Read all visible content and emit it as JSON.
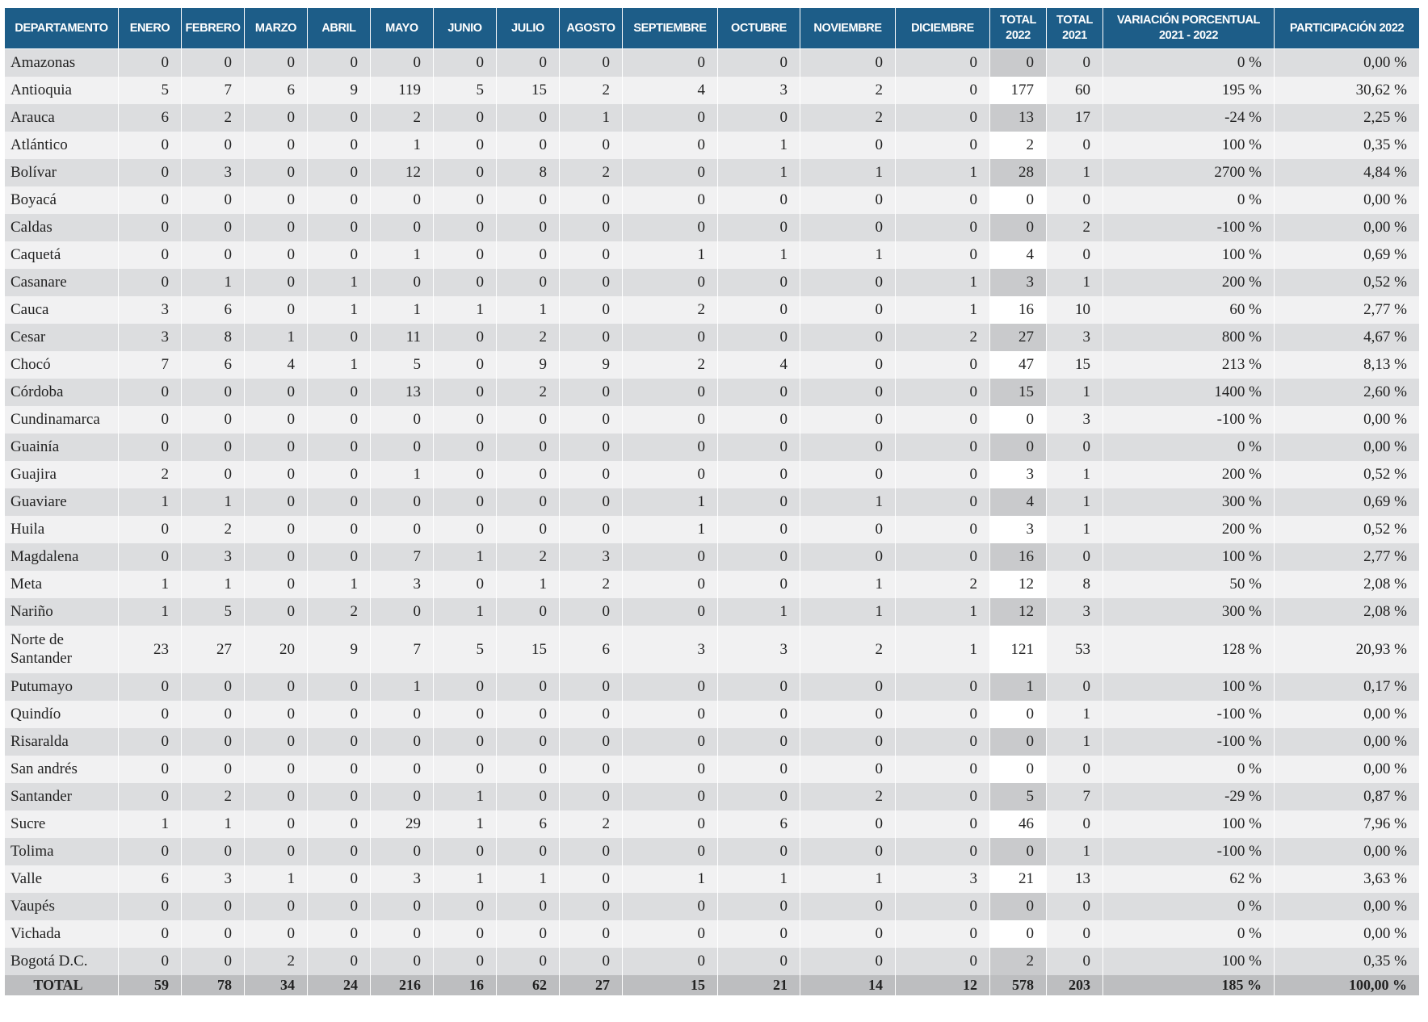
{
  "table": {
    "header": [
      "DEPARTAMENTO",
      "ENERO",
      "FEBRERO",
      "MARZO",
      "ABRIL",
      "MAYO",
      "JUNIO",
      "JULIO",
      "AGOSTO",
      "SEPTIEMBRE",
      "OCTUBRE",
      "NOVIEMBRE",
      "DICIEMBRE",
      "TOTAL 2022",
      "TOTAL 2021",
      "VARIACIÓN PORCENTUAL 2021 - 2022",
      "PARTICIPACIÓN 2022"
    ],
    "rows": [
      [
        "Amazonas",
        "0",
        "0",
        "0",
        "0",
        "0",
        "0",
        "0",
        "0",
        "0",
        "0",
        "0",
        "0",
        "0",
        "0",
        "0 %",
        "0,00 %"
      ],
      [
        "Antioquia",
        "5",
        "7",
        "6",
        "9",
        "119",
        "5",
        "15",
        "2",
        "4",
        "3",
        "2",
        "0",
        "177",
        "60",
        "195 %",
        "30,62 %"
      ],
      [
        "Arauca",
        "6",
        "2",
        "0",
        "0",
        "2",
        "0",
        "0",
        "1",
        "0",
        "0",
        "2",
        "0",
        "13",
        "17",
        "-24 %",
        "2,25 %"
      ],
      [
        "Atlántico",
        "0",
        "0",
        "0",
        "0",
        "1",
        "0",
        "0",
        "0",
        "0",
        "1",
        "0",
        "0",
        "2",
        "0",
        "100 %",
        "0,35 %"
      ],
      [
        "Bolívar",
        "0",
        "3",
        "0",
        "0",
        "12",
        "0",
        "8",
        "2",
        "0",
        "1",
        "1",
        "1",
        "28",
        "1",
        "2700 %",
        "4,84 %"
      ],
      [
        "Boyacá",
        "0",
        "0",
        "0",
        "0",
        "0",
        "0",
        "0",
        "0",
        "0",
        "0",
        "0",
        "0",
        "0",
        "0",
        "0 %",
        "0,00 %"
      ],
      [
        "Caldas",
        "0",
        "0",
        "0",
        "0",
        "0",
        "0",
        "0",
        "0",
        "0",
        "0",
        "0",
        "0",
        "0",
        "2",
        "-100 %",
        "0,00 %"
      ],
      [
        "Caquetá",
        "0",
        "0",
        "0",
        "0",
        "1",
        "0",
        "0",
        "0",
        "1",
        "1",
        "1",
        "0",
        "4",
        "0",
        "100 %",
        "0,69 %"
      ],
      [
        "Casanare",
        "0",
        "1",
        "0",
        "1",
        "0",
        "0",
        "0",
        "0",
        "0",
        "0",
        "0",
        "1",
        "3",
        "1",
        "200 %",
        "0,52 %"
      ],
      [
        "Cauca",
        "3",
        "6",
        "0",
        "1",
        "1",
        "1",
        "1",
        "0",
        "2",
        "0",
        "0",
        "1",
        "16",
        "10",
        "60 %",
        "2,77 %"
      ],
      [
        "Cesar",
        "3",
        "8",
        "1",
        "0",
        "11",
        "0",
        "2",
        "0",
        "0",
        "0",
        "0",
        "2",
        "27",
        "3",
        "800 %",
        "4,67 %"
      ],
      [
        "Chocó",
        "7",
        "6",
        "4",
        "1",
        "5",
        "0",
        "9",
        "9",
        "2",
        "4",
        "0",
        "0",
        "47",
        "15",
        "213 %",
        "8,13 %"
      ],
      [
        "Córdoba",
        "0",
        "0",
        "0",
        "0",
        "13",
        "0",
        "2",
        "0",
        "0",
        "0",
        "0",
        "0",
        "15",
        "1",
        "1400 %",
        "2,60 %"
      ],
      [
        "Cundinamarca",
        "0",
        "0",
        "0",
        "0",
        "0",
        "0",
        "0",
        "0",
        "0",
        "0",
        "0",
        "0",
        "0",
        "3",
        "-100 %",
        "0,00 %"
      ],
      [
        "Guainía",
        "0",
        "0",
        "0",
        "0",
        "0",
        "0",
        "0",
        "0",
        "0",
        "0",
        "0",
        "0",
        "0",
        "0",
        "0 %",
        "0,00 %"
      ],
      [
        "Guajira",
        "2",
        "0",
        "0",
        "0",
        "1",
        "0",
        "0",
        "0",
        "0",
        "0",
        "0",
        "0",
        "3",
        "1",
        "200 %",
        "0,52 %"
      ],
      [
        "Guaviare",
        "1",
        "1",
        "0",
        "0",
        "0",
        "0",
        "0",
        "0",
        "1",
        "0",
        "1",
        "0",
        "4",
        "1",
        "300 %",
        "0,69 %"
      ],
      [
        "Huila",
        "0",
        "2",
        "0",
        "0",
        "0",
        "0",
        "0",
        "0",
        "1",
        "0",
        "0",
        "0",
        "3",
        "1",
        "200 %",
        "0,52 %"
      ],
      [
        "Magdalena",
        "0",
        "3",
        "0",
        "0",
        "7",
        "1",
        "2",
        "3",
        "0",
        "0",
        "0",
        "0",
        "16",
        "0",
        "100 %",
        "2,77 %"
      ],
      [
        "Meta",
        "1",
        "1",
        "0",
        "1",
        "3",
        "0",
        "1",
        "2",
        "0",
        "0",
        "1",
        "2",
        "12",
        "8",
        "50 %",
        "2,08 %"
      ],
      [
        "Nariño",
        "1",
        "5",
        "0",
        "2",
        "0",
        "1",
        "0",
        "0",
        "0",
        "1",
        "1",
        "1",
        "12",
        "3",
        "300 %",
        "2,08 %"
      ],
      [
        "Norte de Santander",
        "23",
        "27",
        "20",
        "9",
        "7",
        "5",
        "15",
        "6",
        "3",
        "3",
        "2",
        "1",
        "121",
        "53",
        "128 %",
        "20,93 %"
      ],
      [
        "Putumayo",
        "0",
        "0",
        "0",
        "0",
        "1",
        "0",
        "0",
        "0",
        "0",
        "0",
        "0",
        "0",
        "1",
        "0",
        "100 %",
        "0,17 %"
      ],
      [
        "Quindío",
        "0",
        "0",
        "0",
        "0",
        "0",
        "0",
        "0",
        "0",
        "0",
        "0",
        "0",
        "0",
        "0",
        "1",
        "-100 %",
        "0,00 %"
      ],
      [
        "Risaralda",
        "0",
        "0",
        "0",
        "0",
        "0",
        "0",
        "0",
        "0",
        "0",
        "0",
        "0",
        "0",
        "0",
        "1",
        "-100 %",
        "0,00 %"
      ],
      [
        "San andrés",
        "0",
        "0",
        "0",
        "0",
        "0",
        "0",
        "0",
        "0",
        "0",
        "0",
        "0",
        "0",
        "0",
        "0",
        "0 %",
        "0,00 %"
      ],
      [
        "Santander",
        "0",
        "2",
        "0",
        "0",
        "0",
        "1",
        "0",
        "0",
        "0",
        "0",
        "2",
        "0",
        "5",
        "7",
        "-29 %",
        "0,87 %"
      ],
      [
        "Sucre",
        "1",
        "1",
        "0",
        "0",
        "29",
        "1",
        "6",
        "2",
        "0",
        "6",
        "0",
        "0",
        "46",
        "0",
        "100 %",
        "7,96 %"
      ],
      [
        "Tolima",
        "0",
        "0",
        "0",
        "0",
        "0",
        "0",
        "0",
        "0",
        "0",
        "0",
        "0",
        "0",
        "0",
        "1",
        "-100 %",
        "0,00 %"
      ],
      [
        "Valle",
        "6",
        "3",
        "1",
        "0",
        "3",
        "1",
        "1",
        "0",
        "1",
        "1",
        "1",
        "3",
        "21",
        "13",
        "62 %",
        "3,63 %"
      ],
      [
        "Vaupés",
        "0",
        "0",
        "0",
        "0",
        "0",
        "0",
        "0",
        "0",
        "0",
        "0",
        "0",
        "0",
        "0",
        "0",
        "0 %",
        "0,00 %"
      ],
      [
        "Vichada",
        "0",
        "0",
        "0",
        "0",
        "0",
        "0",
        "0",
        "0",
        "0",
        "0",
        "0",
        "0",
        "0",
        "0",
        "0 %",
        "0,00 %"
      ],
      [
        "Bogotá D.C.",
        "0",
        "0",
        "2",
        "0",
        "0",
        "0",
        "0",
        "0",
        "0",
        "0",
        "0",
        "0",
        "2",
        "0",
        "100 %",
        "0,35 %"
      ]
    ],
    "total": [
      "TOTAL",
      "59",
      "78",
      "34",
      "24",
      "216",
      "16",
      "62",
      "27",
      "15",
      "21",
      "14",
      "12",
      "578",
      "203",
      "185 %",
      "100,00 %"
    ]
  }
}
